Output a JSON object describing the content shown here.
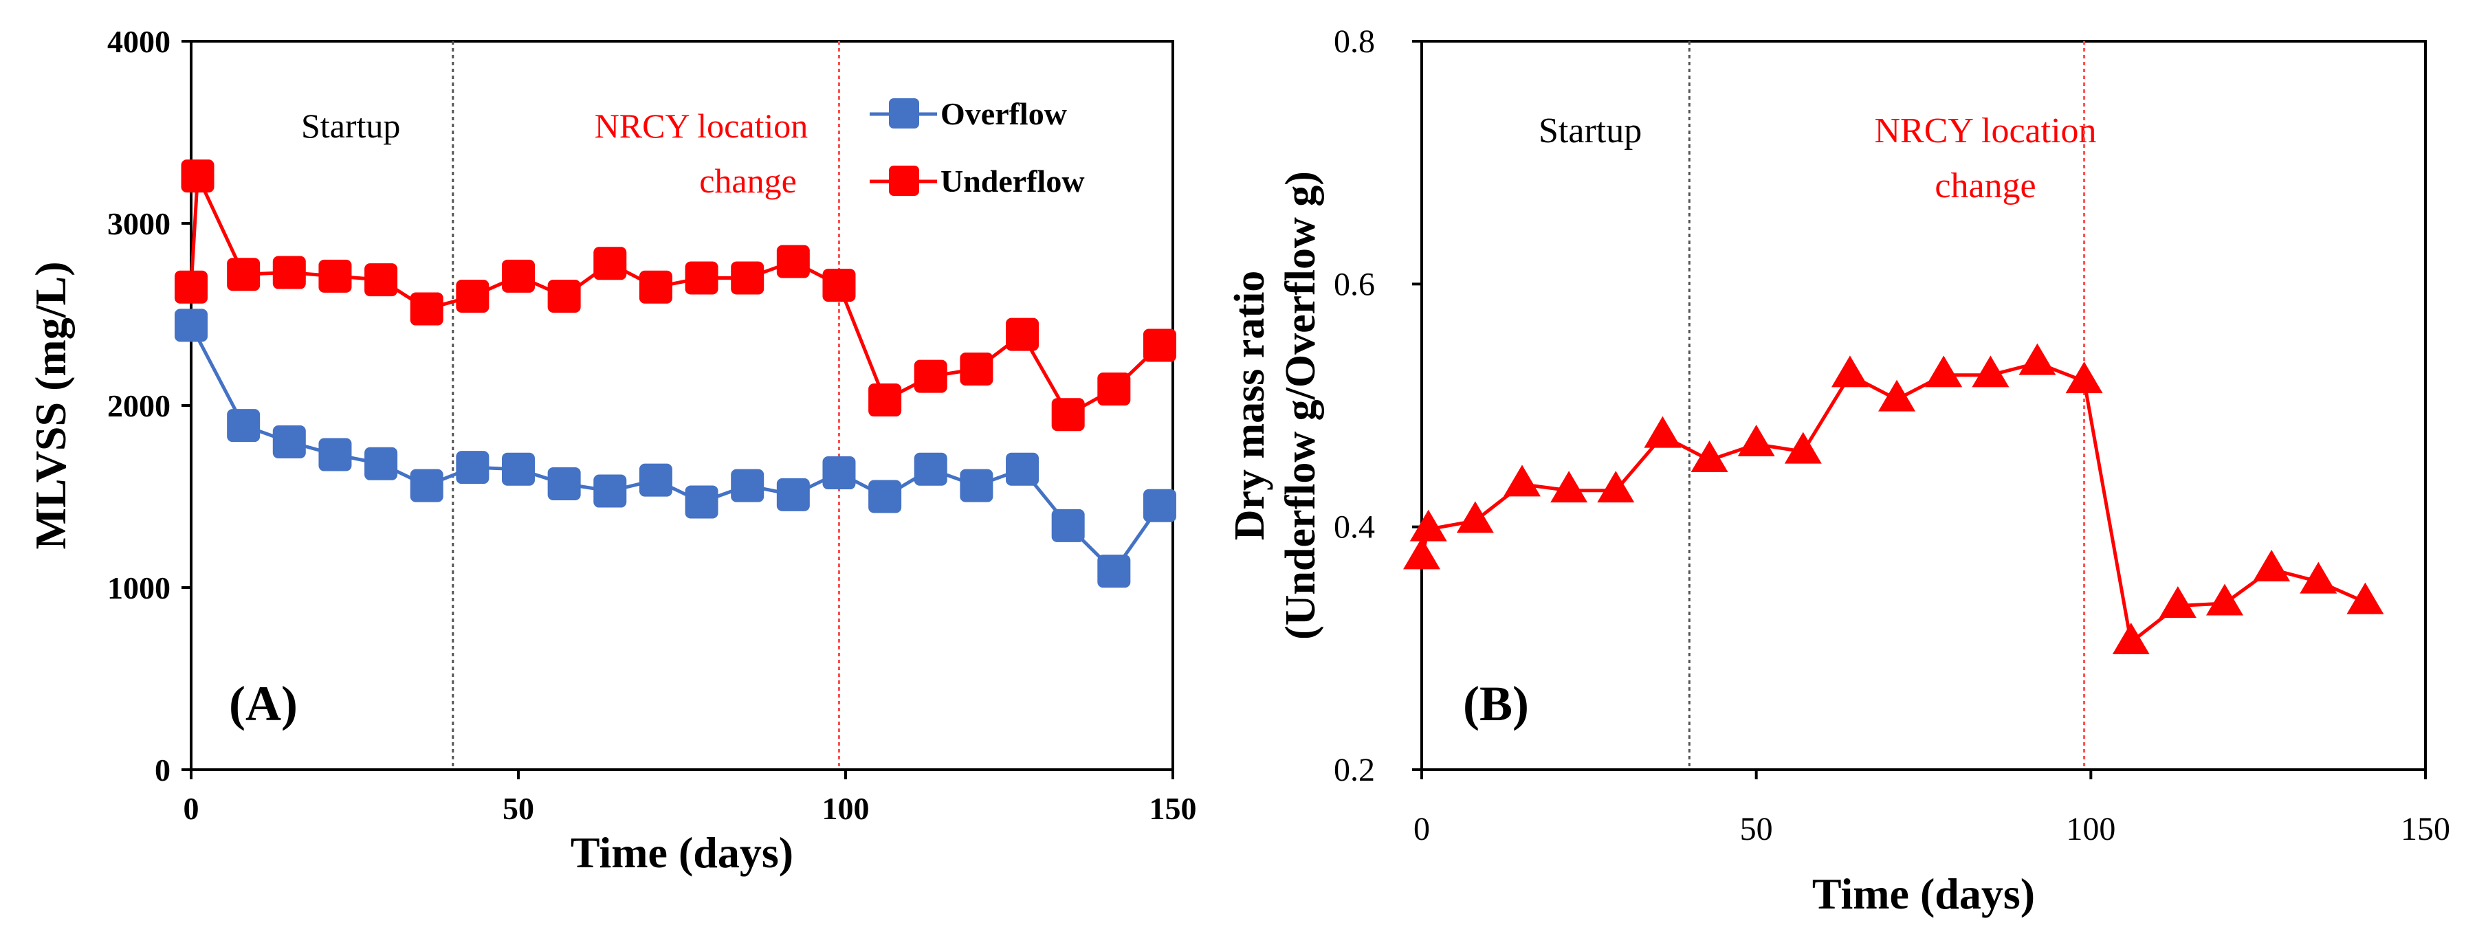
{
  "chart_data": [
    {
      "panel_label": "(A)",
      "type": "line",
      "xlabel": "Time (days)",
      "ylabel": "MLVSS (mg/L)",
      "xlim": [
        0,
        150
      ],
      "ylim": [
        0,
        4000
      ],
      "x_ticks": [
        0,
        50,
        100,
        150
      ],
      "y_ticks": [
        0,
        1000,
        2000,
        3000,
        4000
      ],
      "x_tick_labels": [
        "0",
        "50",
        "100",
        "150"
      ],
      "y_tick_labels": [
        "0",
        "1000",
        "2000",
        "3000",
        "4000"
      ],
      "vlines": [
        {
          "x": 40,
          "label": "Startup",
          "color": "#555555"
        },
        {
          "x": 99,
          "label": "NRCY location change",
          "color": "#ff4d4d"
        }
      ],
      "annotations": {
        "startup": "Startup",
        "nrcy_line1": "NRCY location",
        "nrcy_line2": "change"
      },
      "legend": [
        "Overflow",
        "Underflow"
      ],
      "series": [
        {
          "name": "Overflow",
          "color": "#4472c4",
          "marker": "square",
          "x": [
            0,
            8,
            15,
            22,
            29,
            36,
            43,
            50,
            57,
            64,
            71,
            78,
            85,
            92,
            99,
            106,
            113,
            120,
            127,
            134,
            141,
            148
          ],
          "y": [
            2440,
            1890,
            1800,
            1730,
            1680,
            1560,
            1660,
            1650,
            1570,
            1530,
            1590,
            1470,
            1560,
            1510,
            1630,
            1500,
            1650,
            1560,
            1650,
            1340,
            1090,
            1450
          ]
        },
        {
          "name": "Underflow",
          "color": "#ff0000",
          "marker": "square",
          "x": [
            0,
            1,
            8,
            15,
            22,
            29,
            36,
            43,
            50,
            57,
            64,
            71,
            78,
            85,
            92,
            99,
            106,
            113,
            120,
            127,
            134,
            141,
            148
          ],
          "y": [
            2650,
            3260,
            2720,
            2730,
            2710,
            2690,
            2530,
            2600,
            2710,
            2600,
            2780,
            2650,
            2700,
            2700,
            2790,
            2660,
            2030,
            2160,
            2200,
            2390,
            1950,
            2090,
            2330
          ]
        }
      ]
    },
    {
      "panel_label": "(B)",
      "type": "line",
      "xlabel": "Time (days)",
      "ylabel_line1": "Dry mass ratio",
      "ylabel_line2": "(Underflow g/Overflow g)",
      "xlim": [
        0,
        150
      ],
      "ylim": [
        0.2,
        0.8
      ],
      "x_ticks": [
        0,
        50,
        100,
        150
      ],
      "y_ticks": [
        0.2,
        0.4,
        0.6,
        0.8
      ],
      "x_tick_labels": [
        "0",
        "50",
        "100",
        "150"
      ],
      "y_tick_labels": [
        "0.2",
        "0.4",
        "0.6",
        "0.8"
      ],
      "vlines": [
        {
          "x": 40,
          "label": "Startup",
          "color": "#555555"
        },
        {
          "x": 99,
          "label": "NRCY location change",
          "color": "#ff4d4d"
        }
      ],
      "annotations": {
        "startup": "Startup",
        "nrcy_line1": "NRCY location",
        "nrcy_line2": "change"
      },
      "series": [
        {
          "name": "Dry mass ratio",
          "color": "#ff0000",
          "marker": "triangle",
          "x": [
            0,
            1,
            8,
            15,
            22,
            29,
            36,
            43,
            50,
            57,
            64,
            71,
            78,
            85,
            92,
            99,
            106,
            113,
            120,
            127,
            134,
            141
          ],
          "y": [
            0.375,
            0.398,
            0.405,
            0.435,
            0.43,
            0.43,
            0.475,
            0.455,
            0.468,
            0.462,
            0.525,
            0.505,
            0.525,
            0.525,
            0.535,
            0.52,
            0.305,
            0.335,
            0.337,
            0.365,
            0.355,
            0.338
          ]
        }
      ]
    }
  ]
}
